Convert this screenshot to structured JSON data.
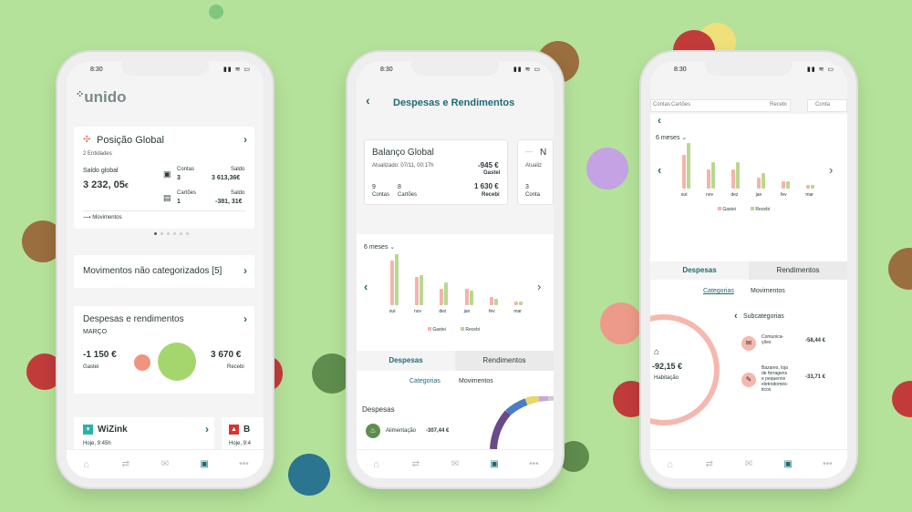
{
  "colors": {
    "background": "#b5e29a",
    "teal": "#1e6b74",
    "spent": "#f4b4aa",
    "received": "#b6d98f",
    "dark": "#2b3a3a"
  },
  "phone1": {
    "time": "8:30",
    "logo": "unido",
    "global": {
      "title": "Posição Global",
      "entities": "2 Entidades",
      "saldo_label": "Saldo global",
      "saldo_value": "3 232, 05",
      "currency": "€",
      "contas_label": "Contas",
      "contas_count": "3",
      "saldo1_label": "Saldo",
      "saldo1_value": "3 613,36€",
      "cartoes_label": "Cartões",
      "cartoes_count": "1",
      "saldo2_label": "Saldo",
      "saldo2_value": "-381, 31€",
      "movimentos": "Movimentos"
    },
    "uncategorized": "Movimentos não categorizados [5]",
    "expenses": {
      "title": "Despesas e rendimentos",
      "month": "MARÇO",
      "spent_value": "-1 150 €",
      "spent_label": "Gastei",
      "received_value": "3 670 €",
      "received_label": "Recebi"
    },
    "wizink": {
      "name": "WiZink",
      "date": "Hoje, 9:45h"
    },
    "bank2": {
      "name": "B",
      "date": "Hoje, 9:4"
    }
  },
  "phone2": {
    "time": "8:30",
    "title": "Despesas e Rendimentos",
    "balance": {
      "title": "Balanço Global",
      "updated": "Atualizado: 07/11, 00:17h",
      "gastei_value": "-945 €",
      "gastei_label": "Gastei",
      "recebi_value": "1 630 €",
      "recebi_label": "Recebi",
      "contas_count": "9",
      "contas_label": "Contas",
      "cartoes_count": "8",
      "cartoes_label": "Cartões"
    },
    "peek": {
      "title": "N",
      "updated": "Atualiz",
      "count": "3",
      "label": "Conta"
    },
    "period": "6 meses",
    "legend_spent": "Gastei",
    "legend_received": "Recebi",
    "tabs": {
      "despesas": "Despesas",
      "rendimentos": "Rendimentos"
    },
    "subtabs": {
      "categorias": "Categorias",
      "movimentos": "Movimentos"
    },
    "section": "Despesas",
    "item": {
      "label": "Alimentação",
      "value": "-307,44 €"
    }
  },
  "phone3": {
    "time": "8:30",
    "top_peek": {
      "contas": "Contas",
      "cartoes": "Cartões",
      "recebi": "Recebi",
      "contas2": "Conta"
    },
    "period": "6 meses",
    "legend_spent": "Gastei",
    "legend_received": "Recebi",
    "tabs": {
      "despesas": "Despesas",
      "rendimentos": "Rendimentos"
    },
    "subtabs": {
      "categorias": "Categorias",
      "movimentos": "Movimentos"
    },
    "center": {
      "value": "-92,15 €",
      "label": "Habitação"
    },
    "subcategories_title": "Subcategorias",
    "sub1": {
      "label_line1": "Comunica-",
      "label_line2": "ções",
      "value": "-58,44 €"
    },
    "sub2": {
      "label_line1": "Bazares, loja",
      "label_line2": "de ferragens",
      "label_line3": "e pequenos",
      "label_line4": "eletrodomés-",
      "label_line5": "ticos",
      "value": "-33,71 €"
    }
  },
  "chart_data": [
    {
      "type": "bar",
      "categories": [
        "out",
        "nov",
        "dez",
        "jan",
        "fev",
        "mar"
      ],
      "series": [
        {
          "name": "Gastei",
          "values": [
            11,
            7,
            4,
            4,
            2,
            1
          ]
        },
        {
          "name": "Recebi",
          "values": [
            12.5,
            7.5,
            5.5,
            3.5,
            1.5,
            1
          ]
        }
      ]
    },
    {
      "type": "bar",
      "categories": [
        "out",
        "nov",
        "dez",
        "jan",
        "fev",
        "mar"
      ],
      "series": [
        {
          "name": "Gastei",
          "values": [
            9,
            5,
            5,
            3,
            2,
            1
          ]
        },
        {
          "name": "Recebi",
          "values": [
            12,
            7,
            7,
            4,
            2,
            1
          ]
        }
      ]
    }
  ]
}
